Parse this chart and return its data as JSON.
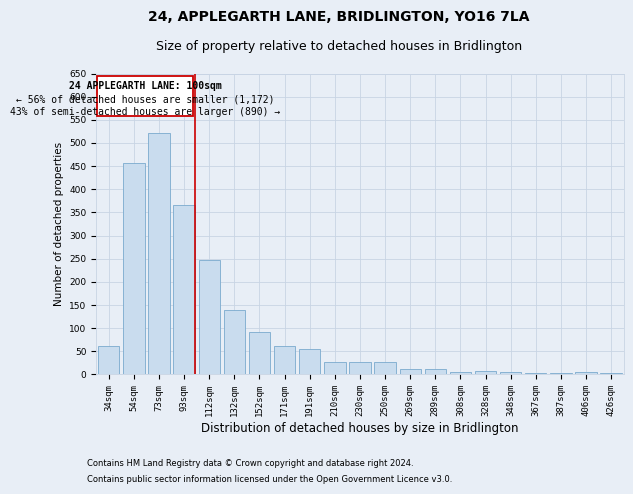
{
  "title": "24, APPLEGARTH LANE, BRIDLINGTON, YO16 7LA",
  "subtitle": "Size of property relative to detached houses in Bridlington",
  "xlabel": "Distribution of detached houses by size in Bridlington",
  "ylabel": "Number of detached properties",
  "categories": [
    "34sqm",
    "54sqm",
    "73sqm",
    "93sqm",
    "112sqm",
    "132sqm",
    "152sqm",
    "171sqm",
    "191sqm",
    "210sqm",
    "230sqm",
    "250sqm",
    "269sqm",
    "289sqm",
    "308sqm",
    "328sqm",
    "348sqm",
    "367sqm",
    "387sqm",
    "406sqm",
    "426sqm"
  ],
  "values": [
    62,
    457,
    521,
    367,
    248,
    140,
    91,
    62,
    54,
    27,
    26,
    27,
    11,
    12,
    6,
    8,
    6,
    4,
    4,
    5,
    4
  ],
  "bar_color": "#c9dcee",
  "bar_edge_color": "#7aaace",
  "grid_color": "#c8d4e4",
  "background_color": "#e8eef6",
  "annotation_box_color": "#ffffff",
  "annotation_border_color": "#cc0000",
  "vline_color": "#cc0000",
  "vline_x_index": 3,
  "annotation_title": "24 APPLEGARTH LANE: 100sqm",
  "annotation_line1": "← 56% of detached houses are smaller (1,172)",
  "annotation_line2": "43% of semi-detached houses are larger (890) →",
  "ylim": [
    0,
    650
  ],
  "yticks": [
    0,
    50,
    100,
    150,
    200,
    250,
    300,
    350,
    400,
    450,
    500,
    550,
    600,
    650
  ],
  "footer1": "Contains HM Land Registry data © Crown copyright and database right 2024.",
  "footer2": "Contains public sector information licensed under the Open Government Licence v3.0.",
  "title_fontsize": 10,
  "subtitle_fontsize": 9,
  "xlabel_fontsize": 8.5,
  "ylabel_fontsize": 7.5,
  "tick_fontsize": 6.5,
  "annotation_fontsize": 7,
  "footer_fontsize": 6
}
